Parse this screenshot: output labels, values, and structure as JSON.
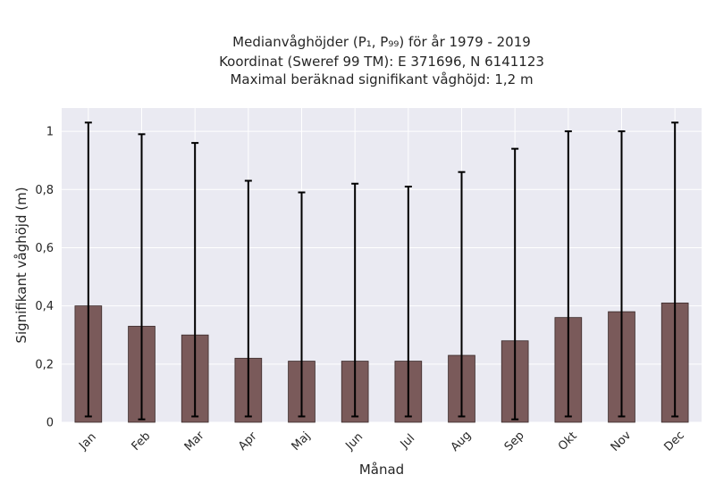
{
  "chart_data": {
    "type": "bar",
    "title_lines": [
      "Medianvåghöjder (P₁, P₉₉) för år 1979 - 2019",
      "Koordinat (Sweref 99 TM): E 371696, N 6141123",
      "Maximal beräknad signifikant våghöjd: 1,2 m"
    ],
    "xlabel": "Månad",
    "ylabel": "Signifikant våghöjd (m)",
    "categories": [
      "Jan",
      "Feb",
      "Mar",
      "Apr",
      "Maj",
      "Jun",
      "Jul",
      "Aug",
      "Sep",
      "Okt",
      "Nov",
      "Dec"
    ],
    "series": [
      {
        "values": [
          0.4,
          0.33,
          0.3,
          0.22,
          0.21,
          0.21,
          0.21,
          0.23,
          0.28,
          0.36,
          0.38,
          0.41
        ],
        "error_low": [
          0.02,
          0.01,
          0.02,
          0.02,
          0.02,
          0.02,
          0.02,
          0.02,
          0.01,
          0.02,
          0.02,
          0.02
        ],
        "error_high": [
          1.03,
          0.99,
          0.96,
          0.83,
          0.79,
          0.82,
          0.81,
          0.86,
          0.94,
          1.0,
          1.0,
          1.03
        ]
      }
    ],
    "ylim": [
      0,
      1.08
    ],
    "yticks": [
      0,
      0.2,
      0.4,
      0.6,
      0.8,
      1
    ],
    "ytick_labels": [
      "0",
      "0,2",
      "0,4",
      "0,6",
      "0,8",
      "1"
    ],
    "grid": true,
    "colors": {
      "bar": "#7a5a5a",
      "bar_edge": "#3a2a2a",
      "error": "#000000",
      "plot_bg": "#eaeaf2",
      "grid": "#ffffff"
    }
  }
}
